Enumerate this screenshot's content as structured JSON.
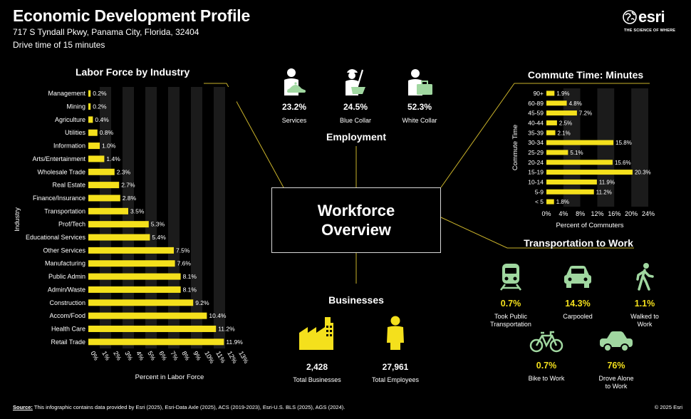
{
  "header": {
    "title": "Economic Development Profile",
    "address": "717 S Tyndall Pkwy, Panama City, Florida, 32404",
    "drive_time": "Drive time of 15 minutes"
  },
  "logo": {
    "word": "esri",
    "tagline": "THE SCIENCE OF WHERE",
    "icon": "globe-icon"
  },
  "center": {
    "line1": "Workforce",
    "line2": "Overview"
  },
  "accent_color": "#f4e01c",
  "labor_force": {
    "title": "Labor Force by Industry",
    "chart_data": {
      "type": "bar",
      "orientation": "horizontal",
      "title": "Labor Force by Industry",
      "xlabel": "Percent in Labor Force",
      "ylabel": "Industry",
      "categories": [
        "Management",
        "Mining",
        "Agriculture",
        "Utilities",
        "Information",
        "Arts/Entertainment",
        "Wholesale Trade",
        "Real Estate",
        "Finance/Insurance",
        "Transportation",
        "Prof/Tech",
        "Educational Services",
        "Other Services",
        "Manufacturing",
        "Public Admin",
        "Admin/Waste",
        "Construction",
        "Accom/Food",
        "Health Care",
        "Retail Trade"
      ],
      "values": [
        0.2,
        0.2,
        0.4,
        0.8,
        1.0,
        1.4,
        2.3,
        2.7,
        2.8,
        3.5,
        5.3,
        5.4,
        7.5,
        7.6,
        8.1,
        8.1,
        9.2,
        10.4,
        11.2,
        11.9
      ],
      "value_labels": [
        "0.2%",
        "0.2%",
        "0.4%",
        "0.8%",
        "1.0%",
        "1.4%",
        "2.3%",
        "2.7%",
        "2.8%",
        "3.5%",
        "5.3%",
        "5.4%",
        "7.5%",
        "7.6%",
        "8.1%",
        "8.1%",
        "9.2%",
        "10.4%",
        "11.2%",
        "11.9%"
      ],
      "xticks": [
        "0%",
        "1%",
        "2%",
        "3%",
        "4%",
        "5%",
        "6%",
        "7%",
        "8%",
        "9%",
        "10%",
        "11%",
        "12%",
        "13%"
      ],
      "xlim": [
        0,
        13
      ]
    }
  },
  "employment": {
    "title": "Employment",
    "items": [
      {
        "icon": "services-worker-icon",
        "value": "23.2%",
        "label": "Services"
      },
      {
        "icon": "blue-collar-worker-icon",
        "value": "24.5%",
        "label": "Blue Collar"
      },
      {
        "icon": "white-collar-worker-icon",
        "value": "52.3%",
        "label": "White Collar"
      }
    ]
  },
  "businesses": {
    "title": "Businesses",
    "items": [
      {
        "icon": "factory-icon",
        "value": "2,428",
        "label": "Total Businesses"
      },
      {
        "icon": "person-icon",
        "value": "27,961",
        "label": "Total Employees"
      }
    ]
  },
  "commute": {
    "title": "Commute Time: Minutes",
    "chart_data": {
      "type": "bar",
      "orientation": "horizontal",
      "title": "Commute Time: Minutes",
      "xlabel": "Percent of Commuters",
      "ylabel": "Commute Time",
      "categories": [
        "90+",
        "60-89",
        "45-59",
        "40-44",
        "35-39",
        "30-34",
        "25-29",
        "20-24",
        "15-19",
        "10-14",
        "5-9",
        "< 5"
      ],
      "values": [
        1.9,
        4.8,
        7.2,
        2.5,
        2.1,
        15.8,
        5.1,
        15.6,
        20.3,
        11.9,
        11.2,
        1.8
      ],
      "value_labels": [
        "1.9%",
        "4.8%",
        "7.2%",
        "2.5%",
        "2.1%",
        "15.8%",
        "5.1%",
        "15.6%",
        "20.3%",
        "11.9%",
        "11.2%",
        "1.8%"
      ],
      "xticks": [
        "0%",
        "4%",
        "8%",
        "12%",
        "16%",
        "20%",
        "24%"
      ],
      "xlim": [
        0,
        24
      ]
    }
  },
  "transportation": {
    "title": "Transportation to Work",
    "items": [
      {
        "icon": "train-icon",
        "value": "0.7%",
        "label1": "Took Public",
        "label2": "Transportation"
      },
      {
        "icon": "car-icon",
        "value": "14.3%",
        "label1": "Carpooled",
        "label2": ""
      },
      {
        "icon": "walking-person-icon",
        "value": "1.1%",
        "label1": "Walked to",
        "label2": "Work"
      },
      {
        "icon": "bicycle-icon",
        "value": "0.7%",
        "label1": "Bike to Work",
        "label2": ""
      },
      {
        "icon": "car-icon",
        "value": "76%",
        "label1": "Drove Alone",
        "label2": "to Work"
      }
    ]
  },
  "footer": {
    "source_label": "Source:",
    "source_text": " This infographic contains data provided by Esri (2025), Esri-Data Axle (2025), ACS (2019-2023), Esri-U.S. BLS (2025), AGS (2024).",
    "copyright": "© 2025 Esri"
  }
}
